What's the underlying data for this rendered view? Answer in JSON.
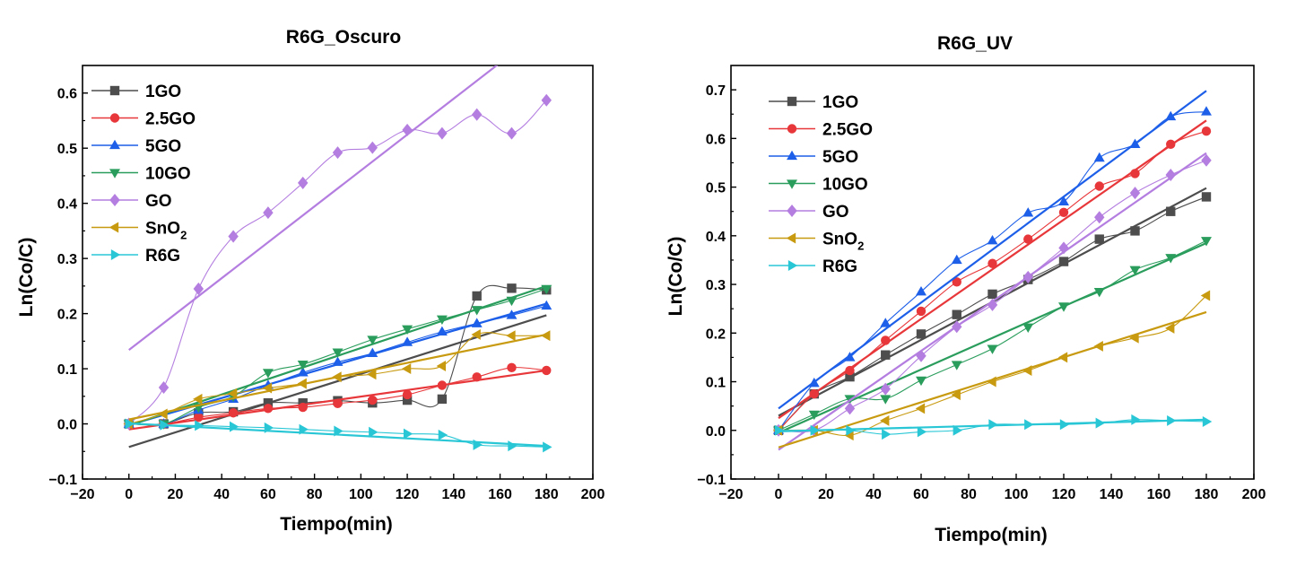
{
  "chart_data": [
    {
      "type": "scatter",
      "title": "R6G_Oscuro",
      "xlabel": "Tiempo(min)",
      "ylabel": "Ln(Co/C)",
      "xlim": [
        -20,
        200
      ],
      "ylim": [
        -0.1,
        0.65
      ],
      "xticks": [
        -20,
        0,
        20,
        40,
        60,
        80,
        100,
        120,
        140,
        160,
        180,
        200
      ],
      "yticks": [
        -0.1,
        0.0,
        0.1,
        0.2,
        0.3,
        0.4,
        0.5,
        0.6
      ],
      "tick_labels_x": [
        "−20",
        "0",
        "20",
        "40",
        "60",
        "80",
        "100",
        "120",
        "140",
        "160",
        "180",
        "200"
      ],
      "tick_labels_y": [
        "−0.1",
        "0.0",
        "0.1",
        "0.2",
        "0.3",
        "0.4",
        "0.5",
        "0.6"
      ],
      "legend_position": "top-left",
      "x": [
        0,
        15,
        30,
        45,
        60,
        75,
        90,
        105,
        120,
        135,
        150,
        165,
        180
      ],
      "series": [
        {
          "name": "1GO",
          "color": "#4d4d4d",
          "marker": "square",
          "values": [
            0.0,
            0.0,
            0.02,
            0.022,
            0.038,
            0.038,
            0.042,
            0.038,
            0.043,
            0.045,
            0.232,
            0.246,
            0.243
          ],
          "fit": [
            -0.042,
            0.197
          ]
        },
        {
          "name": "2.5GO",
          "color": "#e8373a",
          "marker": "circle",
          "values": [
            0.0,
            0.0,
            0.012,
            0.02,
            0.028,
            0.03,
            0.037,
            0.043,
            0.053,
            0.07,
            0.085,
            0.102,
            0.097
          ],
          "fit": [
            -0.01,
            0.097
          ]
        },
        {
          "name": "5GO",
          "color": "#1d5fe8",
          "marker": "triangle-up",
          "values": [
            0.0,
            0.0,
            0.025,
            0.045,
            0.07,
            0.093,
            0.112,
            0.128,
            0.148,
            0.167,
            0.182,
            0.197,
            0.214
          ],
          "fit": [
            -0.002,
            0.218
          ]
        },
        {
          "name": "10GO",
          "color": "#2a9d5c",
          "marker": "triangle-down",
          "values": [
            0.0,
            0.0,
            0.03,
            0.05,
            0.093,
            0.108,
            0.13,
            0.153,
            0.172,
            0.19,
            0.207,
            0.224,
            0.245
          ],
          "fit": [
            -0.003,
            0.25
          ]
        },
        {
          "name": "GO",
          "color": "#b47ee0",
          "marker": "diamond",
          "values": [
            0.0,
            0.066,
            0.245,
            0.34,
            0.383,
            0.437,
            0.492,
            0.501,
            0.533,
            0.527,
            0.561,
            0.527,
            0.587
          ],
          "fit": [
            0.134,
            0.72
          ]
        },
        {
          "name": "SnO2",
          "color": "#c89a10",
          "marker": "triangle-left",
          "values": [
            0.0,
            0.018,
            0.045,
            0.055,
            0.065,
            0.073,
            0.085,
            0.09,
            0.1,
            0.105,
            0.162,
            0.16,
            0.16
          ],
          "fit": [
            0.008,
            0.162
          ]
        },
        {
          "name": "R6G",
          "color": "#29c7d6",
          "marker": "triangle-right",
          "values": [
            0.0,
            -0.002,
            -0.003,
            -0.005,
            -0.007,
            -0.01,
            -0.013,
            -0.015,
            -0.018,
            -0.02,
            -0.038,
            -0.04,
            -0.042
          ],
          "fit": [
            0.001,
            -0.04
          ]
        }
      ]
    },
    {
      "type": "scatter",
      "title": "R6G_UV",
      "xlabel": "Tiempo(min)",
      "ylabel": "Ln(Co/C)",
      "xlim": [
        -20,
        200
      ],
      "ylim": [
        -0.1,
        0.75
      ],
      "xticks": [
        -20,
        0,
        20,
        40,
        60,
        80,
        100,
        120,
        140,
        160,
        180,
        200
      ],
      "yticks": [
        -0.1,
        0.0,
        0.1,
        0.2,
        0.3,
        0.4,
        0.5,
        0.6,
        0.7
      ],
      "tick_labels_x": [
        "−20",
        "0",
        "20",
        "40",
        "60",
        "80",
        "100",
        "120",
        "140",
        "160",
        "180",
        "200"
      ],
      "tick_labels_y": [
        "−0.1",
        "0.0",
        "0.1",
        "0.2",
        "0.3",
        "0.4",
        "0.5",
        "0.6",
        "0.7"
      ],
      "legend_position": "top-left",
      "x": [
        0,
        15,
        30,
        45,
        60,
        75,
        90,
        105,
        120,
        135,
        150,
        165,
        180
      ],
      "series": [
        {
          "name": "1GO",
          "color": "#4d4d4d",
          "marker": "square",
          "values": [
            0.0,
            0.075,
            0.11,
            0.155,
            0.198,
            0.238,
            0.28,
            0.31,
            0.347,
            0.393,
            0.41,
            0.45,
            0.48
          ],
          "fit": [
            0.03,
            0.498
          ]
        },
        {
          "name": "2.5GO",
          "color": "#e8373a",
          "marker": "circle",
          "values": [
            0.0,
            0.075,
            0.123,
            0.185,
            0.245,
            0.305,
            0.343,
            0.393,
            0.448,
            0.502,
            0.528,
            0.588,
            0.615
          ],
          "fit": [
            0.025,
            0.637
          ]
        },
        {
          "name": "5GO",
          "color": "#1d5fe8",
          "marker": "triangle-up",
          "values": [
            0.0,
            0.097,
            0.15,
            0.22,
            0.285,
            0.35,
            0.39,
            0.447,
            0.47,
            0.56,
            0.588,
            0.645,
            0.655
          ],
          "fit": [
            0.045,
            0.698
          ]
        },
        {
          "name": "10GO",
          "color": "#2a9d5c",
          "marker": "triangle-down",
          "values": [
            0.0,
            0.033,
            0.065,
            0.065,
            0.103,
            0.135,
            0.168,
            0.212,
            0.255,
            0.285,
            0.33,
            0.355,
            0.39
          ],
          "fit": [
            -0.005,
            0.385
          ]
        },
        {
          "name": "GO",
          "color": "#b47ee0",
          "marker": "diamond",
          "values": [
            0.0,
            0.0,
            0.045,
            0.085,
            0.153,
            0.213,
            0.258,
            0.315,
            0.375,
            0.438,
            0.488,
            0.525,
            0.555
          ],
          "fit": [
            -0.04,
            0.57
          ]
        },
        {
          "name": "SnO2",
          "color": "#c89a10",
          "marker": "triangle-left",
          "values": [
            0.0,
            0.0,
            -0.01,
            0.02,
            0.045,
            0.073,
            0.1,
            0.123,
            0.15,
            0.173,
            0.19,
            0.21,
            0.277
          ],
          "fit": [
            -0.035,
            0.243
          ]
        },
        {
          "name": "R6G",
          "color": "#29c7d6",
          "marker": "triangle-right",
          "values": [
            0.0,
            0.0,
            0.0,
            -0.008,
            -0.003,
            0.0,
            0.012,
            0.012,
            0.012,
            0.015,
            0.022,
            0.02,
            0.018
          ],
          "fit": [
            -0.002,
            0.022
          ]
        }
      ]
    }
  ]
}
